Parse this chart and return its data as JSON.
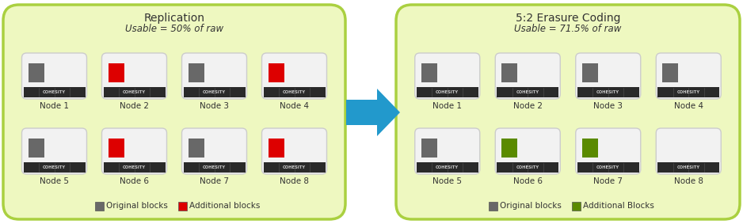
{
  "panel_bg": "#eef8c0",
  "panel_edge": "#aad040",
  "node_bg": "#f2f2f2",
  "node_edge": "#cccccc",
  "cohesity_bar_color": "#2a2a2a",
  "original_block_color": "#686868",
  "red_block_color": "#dd0000",
  "green_block_color": "#5a8a00",
  "arrow_color": "#2299cc",
  "text_color": "#333333",
  "left_title": "Replication",
  "left_subtitle": "Usable = 50% of raw",
  "right_title": "5:2 Erasure Coding",
  "right_subtitle": "Usable = 71.5% of raw",
  "left_nodes_row1": [
    "Node 1",
    "Node 2",
    "Node 3",
    "Node 4"
  ],
  "left_nodes_row2": [
    "Node 5",
    "Node 6",
    "Node 7",
    "Node 8"
  ],
  "right_nodes_row1": [
    "Node 1",
    "Node 2",
    "Node 3",
    "Node 4"
  ],
  "right_nodes_row2": [
    "Node 5",
    "Node 6",
    "Node 7",
    "Node 8"
  ],
  "left_blocks_row1": [
    "original",
    "red",
    "original",
    "red"
  ],
  "left_blocks_row2": [
    "original",
    "red",
    "original",
    "red"
  ],
  "right_blocks_row1": [
    "original",
    "original",
    "original",
    "original"
  ],
  "right_blocks_row2": [
    "original",
    "green",
    "green",
    "none"
  ],
  "left_legend": [
    [
      "original",
      "Original blocks"
    ],
    [
      "red",
      "Additional blocks"
    ]
  ],
  "right_legend": [
    [
      "original",
      "Original blocks"
    ],
    [
      "green",
      "Additional Blocks"
    ]
  ],
  "fig_width": 9.38,
  "fig_height": 2.83,
  "dpi": 100
}
